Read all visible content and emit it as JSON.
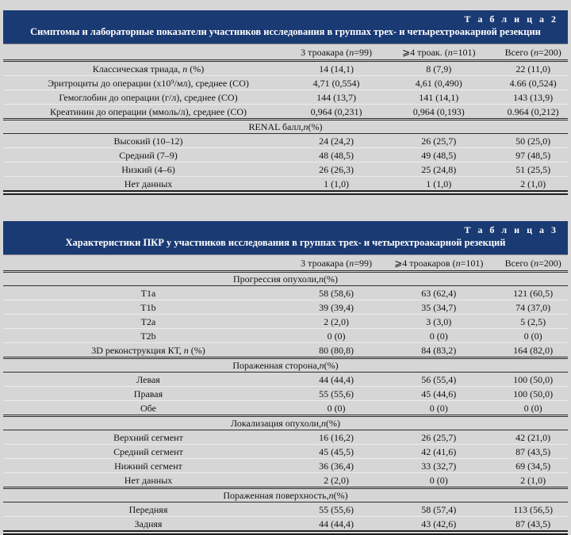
{
  "colors": {
    "band_background": "#1a3a74",
    "band_text": "#ffffff",
    "page_background": "#d6d6d6",
    "text": "#141414"
  },
  "tables": [
    {
      "tag": "Т а б л и ц а   2",
      "title": "Симптомы и лабораторные показатели участников исследования в группах трех- и четырехтроакарной резекции",
      "columns": [
        "3 троакара (n=99)",
        "⩾4 троак. (n=101)",
        "Всего (n=200)"
      ],
      "sections": [
        {
          "header": null,
          "rows": [
            [
              "Классическая триада, n (%)",
              "14 (14,1)",
              "8 (7,9)",
              "22 (11,0)"
            ],
            [
              "Эритроциты до операции (х10⁹/мл), среднее (СО)",
              "4,71 (0,554)",
              "4,61 (0,490)",
              "4.66 (0,524)"
            ],
            [
              "Гемоглобин до операции (г/л), среднее (СО)",
              "144 (13,7)",
              "141 (14,1)",
              "143 (13,9)"
            ],
            [
              "Креатинин до операции (ммоль/л), среднее (СО)",
              "0,964 (0,231)",
              "0,964 (0,193)",
              "0.964 (0,212)"
            ]
          ]
        },
        {
          "header": "RENAL балл, n (%)",
          "rows": [
            [
              "Высокий (10–12)",
              "24 (24,2)",
              "26 (25,7)",
              "50 (25,0)"
            ],
            [
              "Средний (7–9)",
              "48 (48,5)",
              "49 (48,5)",
              "97 (48,5)"
            ],
            [
              "Низкий (4–6)",
              "26 (26,3)",
              "25 (24,8)",
              "51 (25,5)"
            ],
            [
              "Нет данных",
              "1 (1,0)",
              "1 (1,0)",
              "2 (1,0)"
            ]
          ]
        }
      ]
    },
    {
      "tag": "Т а б л и ц а   3",
      "title": "Характеристики ПКР у участников исследования в группах трех- и четырехтроакарной резекций",
      "columns": [
        "3 троакара (n=99)",
        "⩾4 троакаров (n=101)",
        "Всего (n=200)"
      ],
      "sections": [
        {
          "header": "Прогрессия опухоли, n (%)",
          "rows": [
            [
              "T1a",
              "58 (58,6)",
              "63 (62,4)",
              "121 (60,5)"
            ],
            [
              "T1b",
              "39 (39,4)",
              "35 (34,7)",
              "74 (37,0)"
            ],
            [
              "T2a",
              "2 (2,0)",
              "3 (3,0)",
              "5 (2,5)"
            ],
            [
              "T2b",
              "0 (0)",
              "0 (0)",
              "0 (0)"
            ],
            [
              "3D реконструкция КТ, n (%)",
              "80 (80,8)",
              "84 (83,2)",
              "164 (82,0)"
            ]
          ]
        },
        {
          "header": "Пораженная сторона, n (%)",
          "rows": [
            [
              "Левая",
              "44 (44,4)",
              "56 (55,4)",
              "100 (50,0)"
            ],
            [
              "Правая",
              "55 (55,6)",
              "45 (44,6)",
              "100 (50,0)"
            ],
            [
              "Обе",
              "0 (0)",
              "0 (0)",
              "0 (0)"
            ]
          ]
        },
        {
          "header": "Локализация опухоли, n (%)",
          "rows": [
            [
              "Верхний сегмент",
              "16 (16,2)",
              "26 (25,7)",
              "42 (21,0)"
            ],
            [
              "Средний сегмент",
              "45 (45,5)",
              "42 (41,6)",
              "87 (43,5)"
            ],
            [
              "Нижний сегмент",
              "36 (36,4)",
              "33 (32,7)",
              "69 (34,5)"
            ],
            [
              "Нет данных",
              "2 (2,0)",
              "0 (0)",
              "2 (1,0)"
            ]
          ]
        },
        {
          "header": "Пораженная поверхность, n (%)",
          "rows": [
            [
              "Передняя",
              "55 (55,6)",
              "58 (57,4)",
              "113 (56,5)"
            ],
            [
              "Задняя",
              "44 (44,4)",
              "43 (42,6)",
              "87 (43,5)"
            ]
          ]
        }
      ]
    }
  ]
}
